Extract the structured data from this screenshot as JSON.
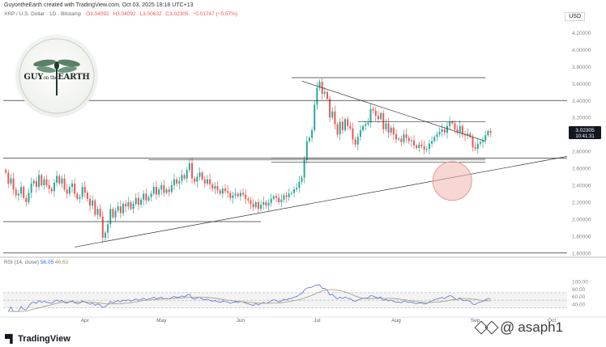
{
  "header": {
    "credit": "GuyontheEarth created with TradingView.com, Oct 03, 2025 18:18 UTC+13",
    "symbol": "XRP / U.S. Dollar · 1D · Bitstamp",
    "ohlc": {
      "open": "O3.04092",
      "high": "H3.04092",
      "low": "L3.00632",
      "close": "C3.02305",
      "change": "−0.01747 (−0.57%)"
    },
    "currency": "USD"
  },
  "logo": {
    "text_main": "GUY",
    "text_small": "on the",
    "text_end": "EARTH"
  },
  "price_tag": {
    "price": "3.02305",
    "countdown": "10:41:31",
    "color": "#131722"
  },
  "rsi": {
    "label": "RSI (14, close)",
    "value1": "56.05",
    "value2": "46.63"
  },
  "brand": {
    "name": "TradingView"
  },
  "watermark": {
    "handle": "asaph1"
  },
  "colors": {
    "up": "#26a69a",
    "down": "#ef5350",
    "rsi_line": "#5b6fd8",
    "rsi_ma": "#9c9c7a",
    "circle": "#f0b6ae"
  },
  "chart_data": {
    "type": "candlestick",
    "title": "XRP / U.S. Dollar · 1D · Bitstamp",
    "y_ticks": [
      "4.20000",
      "4.00000",
      "3.80000",
      "3.60000",
      "3.40000",
      "3.20000",
      "3.00000",
      "2.80000",
      "2.60000",
      "2.40000",
      "2.20000",
      "2.00000",
      "1.80000",
      "1.60000"
    ],
    "y_tick_values": [
      4.2,
      4.0,
      3.8,
      3.6,
      3.4,
      3.2,
      3.0,
      2.8,
      2.6,
      2.4,
      2.2,
      2.0,
      1.8,
      1.6
    ],
    "ylim": [
      1.55,
      4.3
    ],
    "x_ticks": [
      "Apr",
      "May",
      "Jun",
      "Jul",
      "Aug",
      "Sep",
      "Oct"
    ],
    "x_tick_days": [
      31,
      61,
      92,
      122,
      153,
      184,
      214
    ],
    "x_range_days": [
      -1,
      220
    ],
    "closes": [
      2.55,
      2.42,
      2.48,
      2.35,
      2.28,
      2.3,
      2.38,
      2.25,
      2.2,
      2.31,
      2.42,
      2.45,
      2.38,
      2.52,
      2.4,
      2.47,
      2.4,
      2.36,
      2.33,
      2.43,
      2.51,
      2.42,
      2.48,
      2.35,
      2.3,
      2.38,
      2.42,
      2.3,
      2.24,
      2.26,
      2.38,
      2.31,
      2.24,
      2.16,
      2.22,
      2.05,
      2.12,
      2.03,
      1.78,
      1.84,
      1.94,
      2.12,
      2.02,
      2.1,
      2.15,
      2.07,
      2.18,
      2.15,
      2.2,
      2.12,
      2.18,
      2.25,
      2.17,
      2.23,
      2.3,
      2.22,
      2.26,
      2.3,
      2.38,
      2.29,
      2.35,
      2.4,
      2.31,
      2.35,
      2.32,
      2.4,
      2.47,
      2.42,
      2.45,
      2.52,
      2.48,
      2.58,
      2.66,
      2.48,
      2.44,
      2.5,
      2.55,
      2.47,
      2.42,
      2.47,
      2.41,
      2.36,
      2.39,
      2.34,
      2.3,
      2.36,
      2.33,
      2.31,
      2.25,
      2.28,
      2.3,
      2.27,
      2.31,
      2.29,
      2.24,
      2.22,
      2.18,
      2.14,
      2.2,
      2.12,
      2.17,
      2.2,
      2.16,
      2.19,
      2.24,
      2.27,
      2.25,
      2.2,
      2.23,
      2.28,
      2.26,
      2.3,
      2.31,
      2.35,
      2.37,
      2.44,
      2.49,
      2.7,
      2.92,
      2.96,
      3.05,
      3.35,
      3.55,
      3.62,
      3.48,
      3.5,
      3.42,
      3.2,
      3.27,
      3.12,
      3.0,
      3.15,
      3.05,
      3.18,
      3.1,
      3.07,
      2.94,
      2.88,
      2.97,
      3.05,
      3.1,
      3.12,
      3.14,
      3.3,
      3.28,
      3.22,
      3.18,
      3.25,
      3.06,
      3.13,
      3.02,
      3.08,
      3.0,
      2.94,
      2.95,
      2.91,
      3.0,
      2.96,
      2.92,
      2.93,
      2.87,
      2.84,
      2.88,
      2.86,
      2.82,
      2.83,
      2.89,
      2.92,
      2.97,
      3.0,
      3.03,
      3.06,
      3.02,
      3.1,
      3.15,
      3.13,
      3.06,
      3.02,
      3.1,
      3.0,
      2.99,
      3.01,
      2.97,
      2.85,
      2.83,
      2.89,
      2.91,
      2.93,
      2.99,
      3.04,
      3.02
    ],
    "trendlines": [
      {
        "name": "horizontal",
        "points": [
          [
            -1,
            3.4
          ],
          [
            220,
            3.4
          ]
        ]
      },
      {
        "name": "horizontal",
        "points": [
          [
            -1,
            2.72
          ],
          [
            220,
            2.72
          ]
        ]
      },
      {
        "name": "horizontal",
        "points": [
          [
            -1,
            1.97
          ],
          [
            100,
            1.97
          ]
        ]
      },
      {
        "name": "horizontal",
        "points": [
          [
            -1,
            1.6
          ],
          [
            220,
            1.6
          ]
        ]
      },
      {
        "name": "ascending support",
        "points": [
          [
            27,
            1.67
          ],
          [
            220,
            2.74
          ]
        ]
      },
      {
        "name": "descending resistance",
        "points": [
          [
            116,
            3.63
          ],
          [
            188,
            2.92
          ]
        ]
      },
      {
        "name": "range top",
        "points": [
          [
            112,
            3.67
          ],
          [
            188,
            3.67
          ]
        ]
      },
      {
        "name": "range",
        "points": [
          [
            138,
            3.15
          ],
          [
            188,
            3.15
          ]
        ]
      },
      {
        "name": "rect top",
        "points": [
          [
            56,
            2.7
          ],
          [
            188,
            2.7
          ]
        ]
      },
      {
        "name": "rect bottom",
        "points": [
          [
            104,
            2.67
          ],
          [
            188,
            2.67
          ]
        ]
      },
      {
        "name": "rect box",
        "points": [
          [
            104,
            2.72
          ],
          [
            188,
            2.72
          ]
        ]
      }
    ],
    "highlight_circle": {
      "day": 175,
      "price": 2.45
    },
    "rsi_ticks": [
      "100.00",
      "80.00",
      "60.00",
      "40.00"
    ],
    "rsi_tick_values": [
      100,
      80,
      60,
      40
    ],
    "rsi_range": [
      20,
      100
    ],
    "rsi_bands": [
      70,
      50,
      30
    ]
  }
}
